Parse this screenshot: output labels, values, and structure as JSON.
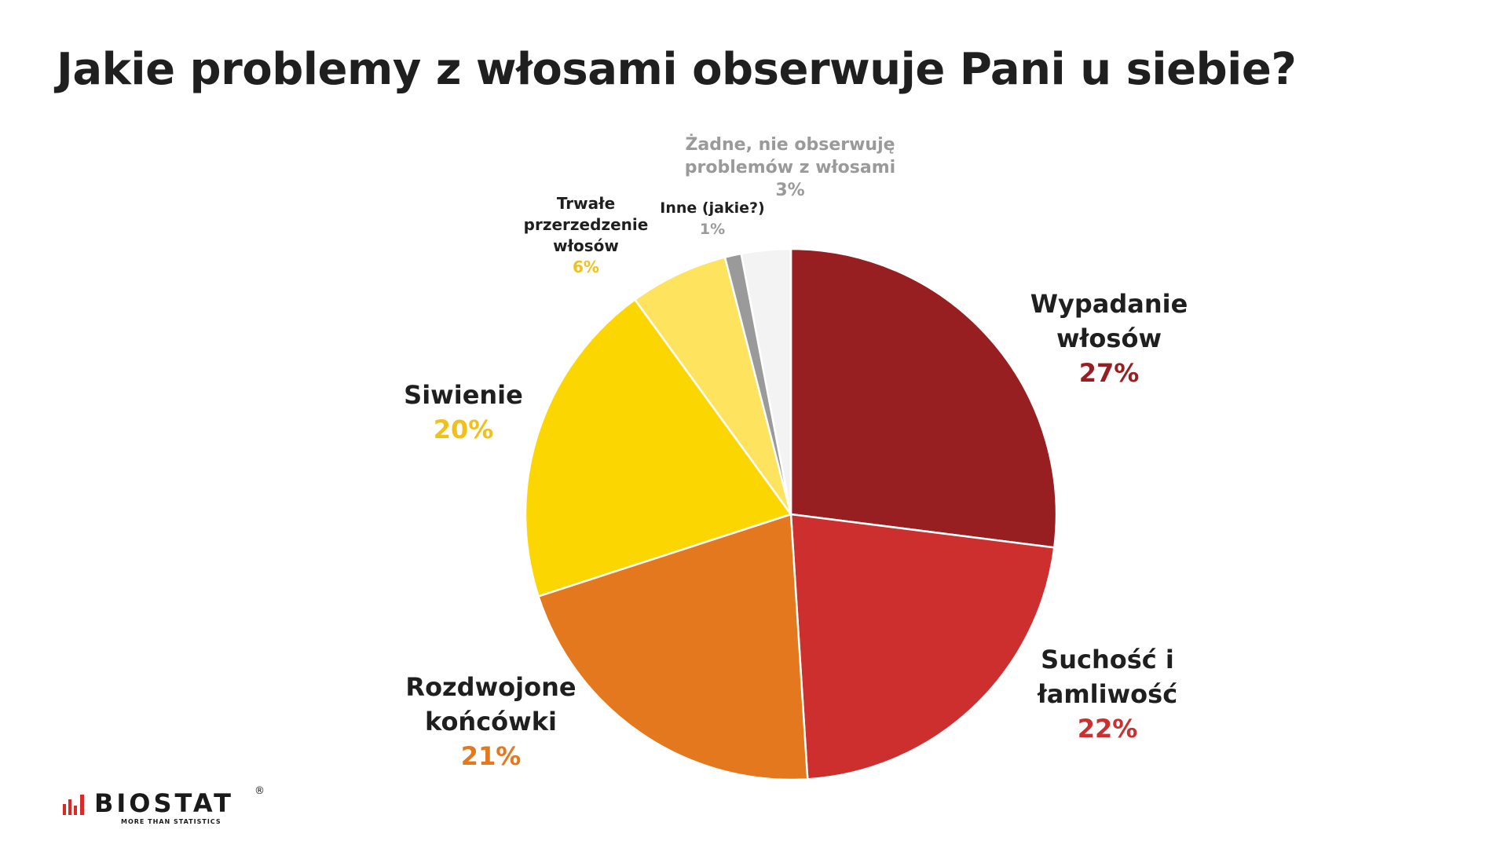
{
  "title": "Jakie problemy z włosami obserwuje Pani u siebie?",
  "chart_data": {
    "type": "pie",
    "title": "",
    "start": "top",
    "direction": "clockwise",
    "slices": [
      {
        "label_lines": [
          "Wypadanie",
          "włosów"
        ],
        "value": 27,
        "value_label": "27%",
        "color": "#971f22",
        "label_color": "#1f1f1f",
        "value_color": "#971f22"
      },
      {
        "label_lines": [
          "Suchość i",
          "łamliwość"
        ],
        "value": 22,
        "value_label": "22%",
        "color": "#cd2e2e",
        "label_color": "#1f1f1f",
        "value_color": "#cd2e2e"
      },
      {
        "label_lines": [
          "Rozdwojone",
          "końcówki"
        ],
        "value": 21,
        "value_label": "21%",
        "color": "#e3781e",
        "label_color": "#1f1f1f",
        "value_color": "#e3781e"
      },
      {
        "label_lines": [
          "Siwienie"
        ],
        "value": 20,
        "value_label": "20%",
        "color": "#fcd600",
        "label_color": "#1f1f1f",
        "value_color": "#f2c01a"
      },
      {
        "label_lines": [
          "Trwałe",
          "przerzedzenie",
          "włosów"
        ],
        "value": 6,
        "value_label": "6%",
        "color": "#fde35e",
        "label_color": "#1f1f1f",
        "value_color": "#f2c01a"
      },
      {
        "label_lines": [
          "Inne (jakie?)"
        ],
        "value": 1,
        "value_label": "1%",
        "color": "#9a9a9a",
        "label_color": "#1f1f1f",
        "value_color": "#9a9a9a"
      },
      {
        "label_lines": [
          "Żadne, nie obserwuję",
          "problemów z włosami"
        ],
        "value": 3,
        "value_label": "3%",
        "color": "#f3f3f3",
        "label_color": "#9a9a9a",
        "value_color": "#9a9a9a"
      }
    ]
  },
  "logo": {
    "name": "BIOSTAT",
    "tagline": "MORE THAN STATISTICS",
    "registered": "®",
    "color": "#d52b2b"
  }
}
